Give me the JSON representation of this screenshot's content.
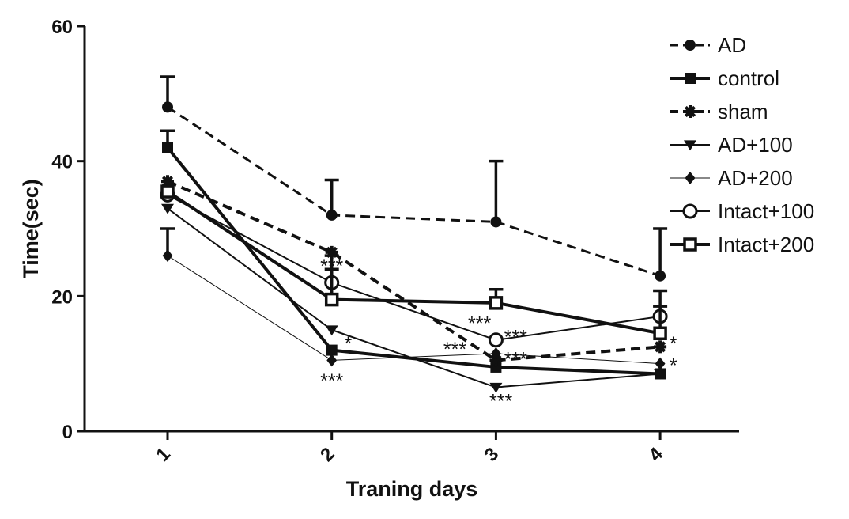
{
  "chart_data": {
    "type": "line",
    "title": "",
    "xlabel": "Traning days",
    "ylabel": "Time(sec)",
    "x": [
      1,
      2,
      3,
      4
    ],
    "x_tick_labels": [
      "1",
      "2",
      "3",
      "4"
    ],
    "y_ticks": [
      0,
      20,
      40,
      60
    ],
    "y_tick_labels": [
      "0",
      "20",
      "40",
      "60"
    ],
    "ylim": [
      0,
      60
    ],
    "legend_position": "top-right",
    "series": [
      {
        "name": "AD",
        "values": [
          48,
          32,
          31,
          23
        ],
        "errors": [
          4.5,
          5.2,
          9,
          7
        ],
        "marker": "circle",
        "dash": "dashed",
        "width": 3
      },
      {
        "name": "control",
        "values": [
          42,
          12,
          9.5,
          8.5
        ],
        "errors": [
          2.5,
          0,
          0,
          0
        ],
        "marker": "square",
        "dash": "solid",
        "width": 4
      },
      {
        "name": "sham",
        "values": [
          37,
          26.5,
          10.5,
          12.5
        ],
        "errors": [
          0,
          0,
          0,
          0
        ],
        "marker": "star",
        "dash": "dashed",
        "width": 4
      },
      {
        "name": "AD+100",
        "values": [
          33,
          15,
          6.5,
          8.5
        ],
        "errors": [
          0,
          0,
          0,
          0
        ],
        "marker": "triangle-down",
        "dash": "solid",
        "width": 2
      },
      {
        "name": "AD+200",
        "values": [
          26,
          10.5,
          11.5,
          10
        ],
        "errors": [
          4,
          0,
          0,
          0
        ],
        "marker": "diamond",
        "dash": "solid",
        "width": 1
      },
      {
        "name": "Intact+100",
        "values": [
          35,
          22,
          13.5,
          17
        ],
        "errors": [
          0,
          4,
          0,
          3.8
        ],
        "marker": "circle-open",
        "dash": "solid",
        "width": 2
      },
      {
        "name": "Intact+200",
        "values": [
          35.5,
          19.5,
          19,
          14.5
        ],
        "errors": [
          0,
          4.5,
          2,
          4
        ],
        "marker": "square-open",
        "dash": "solid",
        "width": 4
      }
    ],
    "annotations": [
      {
        "text": "***",
        "x": 2,
        "y": 24.5
      },
      {
        "text": "*",
        "x": 2.1,
        "y": 13
      },
      {
        "text": "***",
        "x": 2,
        "y": 7.5
      },
      {
        "text": "***",
        "x": 2.9,
        "y": 16
      },
      {
        "text": "***",
        "x": 3.12,
        "y": 14
      },
      {
        "text": "***",
        "x": 2.75,
        "y": 12.2
      },
      {
        "text": "***",
        "x": 3.12,
        "y": 10.7
      },
      {
        "text": "***",
        "x": 3.03,
        "y": 4.5
      },
      {
        "text": "*",
        "x": 4.08,
        "y": 13
      },
      {
        "text": "*",
        "x": 4.08,
        "y": 9.8
      }
    ]
  }
}
